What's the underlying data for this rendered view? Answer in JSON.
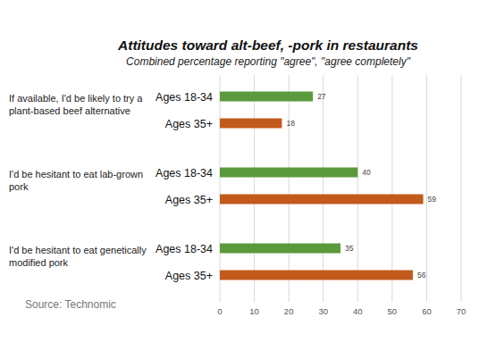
{
  "chart_data": {
    "type": "bar",
    "orientation": "horizontal",
    "title": "Attitudes toward alt-beef, -pork in restaurants",
    "subtitle": "Combined percentage reporting \"agree\", \"agree completely\"",
    "source": "Source: Technomic",
    "categories": [
      "If available, I'd be likely to try a plant-based beef alternative",
      "I'd be hesitant to eat lab-grown pork",
      "I'd be hesitant to eat genetically modified pork"
    ],
    "series": [
      {
        "name": "Ages 18-34",
        "color": "#5b9a3c",
        "values": [
          27,
          40,
          35
        ]
      },
      {
        "name": "Ages 35+",
        "color": "#c25a1c",
        "values": [
          18,
          59,
          56
        ]
      }
    ],
    "xlim": [
      0,
      70
    ],
    "xticks": [
      0,
      10,
      20,
      30,
      40,
      50,
      60,
      70
    ],
    "grid": true,
    "data_labels": true
  }
}
